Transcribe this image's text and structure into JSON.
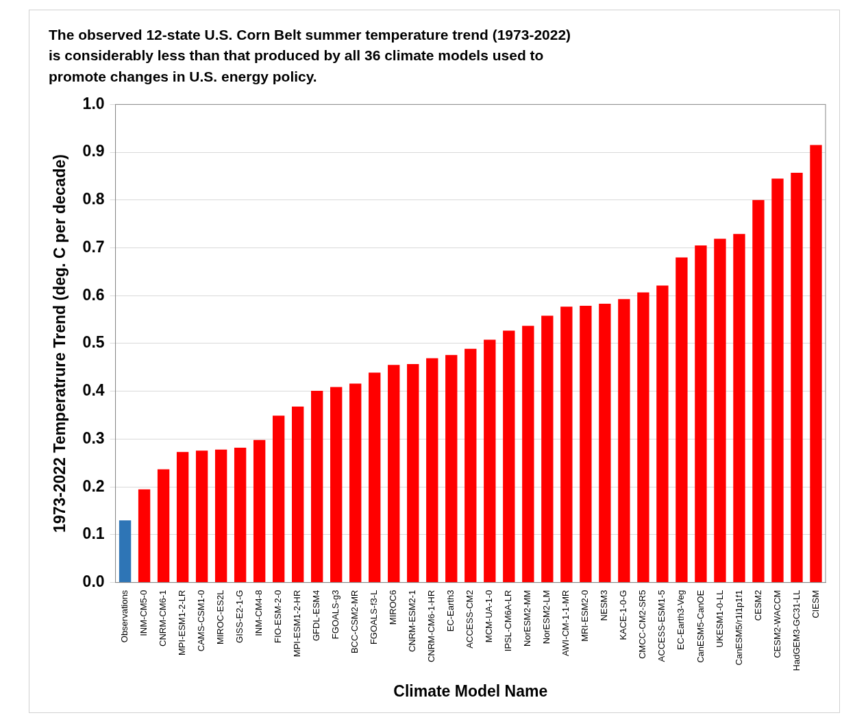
{
  "chart_data": {
    "type": "bar",
    "title": "The observed 12-state U.S. Corn Belt summer temperature trend (1973-2022)\nis considerably less than that produced by all 36 climate models used to\npromote changes in U.S. energy policy.",
    "x_label": "Climate Model Name",
    "y_label": "1973-2022 Temperatrure Trend (deg. C per decade)",
    "categories": [
      "Observations",
      "INM-CM5-0",
      "CNRM-CM6-1",
      "MPI-ESM1-2-LR",
      "CAMS-CSM1-0",
      "MIROC-ES2L",
      "GISS-E2-1-G",
      "INM-CM4-8",
      "FIO-ESM-2-0",
      "MPI-ESM1-2-HR",
      "GFDL-ESM4",
      "FGOALS-g3",
      "BCC-CSM2-MR",
      "FGOALS-f3-L",
      "MIROC6",
      "CNRM-ESM2-1",
      "CNRM-CM6-1-HR",
      "EC-Earth3",
      "ACCESS-CM2",
      "MCM-UA-1-0",
      "IPSL-CM6A-LR",
      "NorESM2-MM",
      "NorESM2-LM",
      "AWI-CM-1-1-MR",
      "MRI-ESM2-0",
      "NESM3",
      "KACE-1-0-G",
      "CMCC-CM2-SR5",
      "ACCESS-ESM1-5",
      "EC-Earth3-Veg",
      "CanESM5-CanOE",
      "UKESM1-0-LL",
      "CanESM5/r1i1p1f1",
      "CESM2",
      "CESM2-WACCM",
      "HadGEM3-GC31-LL",
      "CIESM"
    ],
    "values": [
      0.13,
      0.195,
      0.237,
      0.273,
      0.276,
      0.278,
      0.282,
      0.298,
      0.349,
      0.368,
      0.401,
      0.409,
      0.416,
      0.439,
      0.455,
      0.457,
      0.469,
      0.476,
      0.489,
      0.508,
      0.527,
      0.537,
      0.558,
      0.577,
      0.579,
      0.583,
      0.593,
      0.607,
      0.621,
      0.68,
      0.705,
      0.719,
      0.729,
      0.8,
      0.845,
      0.857,
      0.915
    ],
    "colors": [
      "#2e75b6",
      "#ff0000",
      "#ff0000",
      "#ff0000",
      "#ff0000",
      "#ff0000",
      "#ff0000",
      "#ff0000",
      "#ff0000",
      "#ff0000",
      "#ff0000",
      "#ff0000",
      "#ff0000",
      "#ff0000",
      "#ff0000",
      "#ff0000",
      "#ff0000",
      "#ff0000",
      "#ff0000",
      "#ff0000",
      "#ff0000",
      "#ff0000",
      "#ff0000",
      "#ff0000",
      "#ff0000",
      "#ff0000",
      "#ff0000",
      "#ff0000",
      "#ff0000",
      "#ff0000",
      "#ff0000",
      "#ff0000",
      "#ff0000",
      "#ff0000",
      "#ff0000",
      "#ff0000",
      "#ff0000"
    ],
    "ylim": [
      0,
      1
    ],
    "yticks": [
      {
        "value": 0,
        "label": "0.0"
      },
      0.1,
      0.2,
      0.3,
      0.4,
      0.5,
      0.6,
      0.7,
      0.8,
      0.9,
      {
        "value": 1,
        "label": "1.0"
      }
    ],
    "grid": true
  }
}
